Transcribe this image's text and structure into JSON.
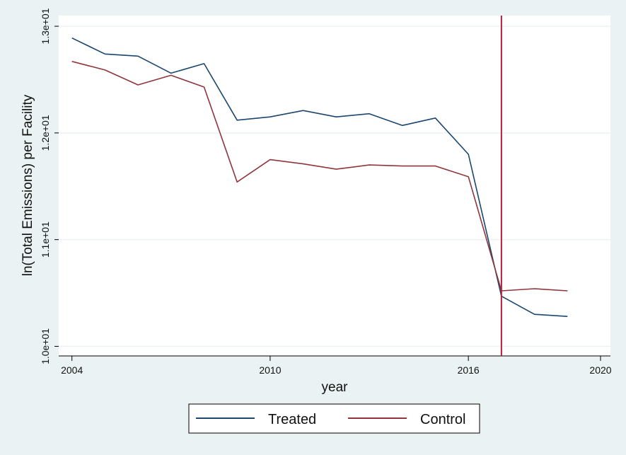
{
  "chart_data": {
    "type": "line",
    "xlabel": "year",
    "ylabel": "ln(Total Emissions) per Facility",
    "xlim": [
      2003.6,
      2020.3
    ],
    "ylim": [
      9.91,
      13.1
    ],
    "xticks": [
      2004,
      2010,
      2016,
      2020
    ],
    "xtick_labels": [
      "2004",
      "2010",
      "2016",
      "2020"
    ],
    "yticks": [
      10,
      11,
      12,
      13
    ],
    "ytick_labels": [
      "1.0e+01",
      "1.1e+01",
      "1.2e+01",
      "1.3e+01"
    ],
    "grid": "horizontal",
    "x": [
      2004,
      2005,
      2006,
      2007,
      2008,
      2009,
      2010,
      2011,
      2012,
      2013,
      2014,
      2015,
      2016,
      2017,
      2018,
      2019
    ],
    "series": [
      {
        "name": "Treated",
        "color": "#1a476f",
        "values": [
          12.89,
          12.74,
          12.72,
          12.56,
          12.65,
          12.12,
          12.15,
          12.21,
          12.15,
          12.18,
          12.07,
          12.14,
          11.8,
          10.47,
          10.3,
          10.28
        ]
      },
      {
        "name": "Control",
        "color": "#90353b",
        "values": [
          12.67,
          12.59,
          12.45,
          12.54,
          12.43,
          11.54,
          11.75,
          11.71,
          11.66,
          11.7,
          11.69,
          11.69,
          11.59,
          10.52,
          10.54,
          10.52
        ]
      }
    ],
    "vline": {
      "x": 2017,
      "color": "#b01e3c"
    },
    "legend_position": "bottom"
  }
}
